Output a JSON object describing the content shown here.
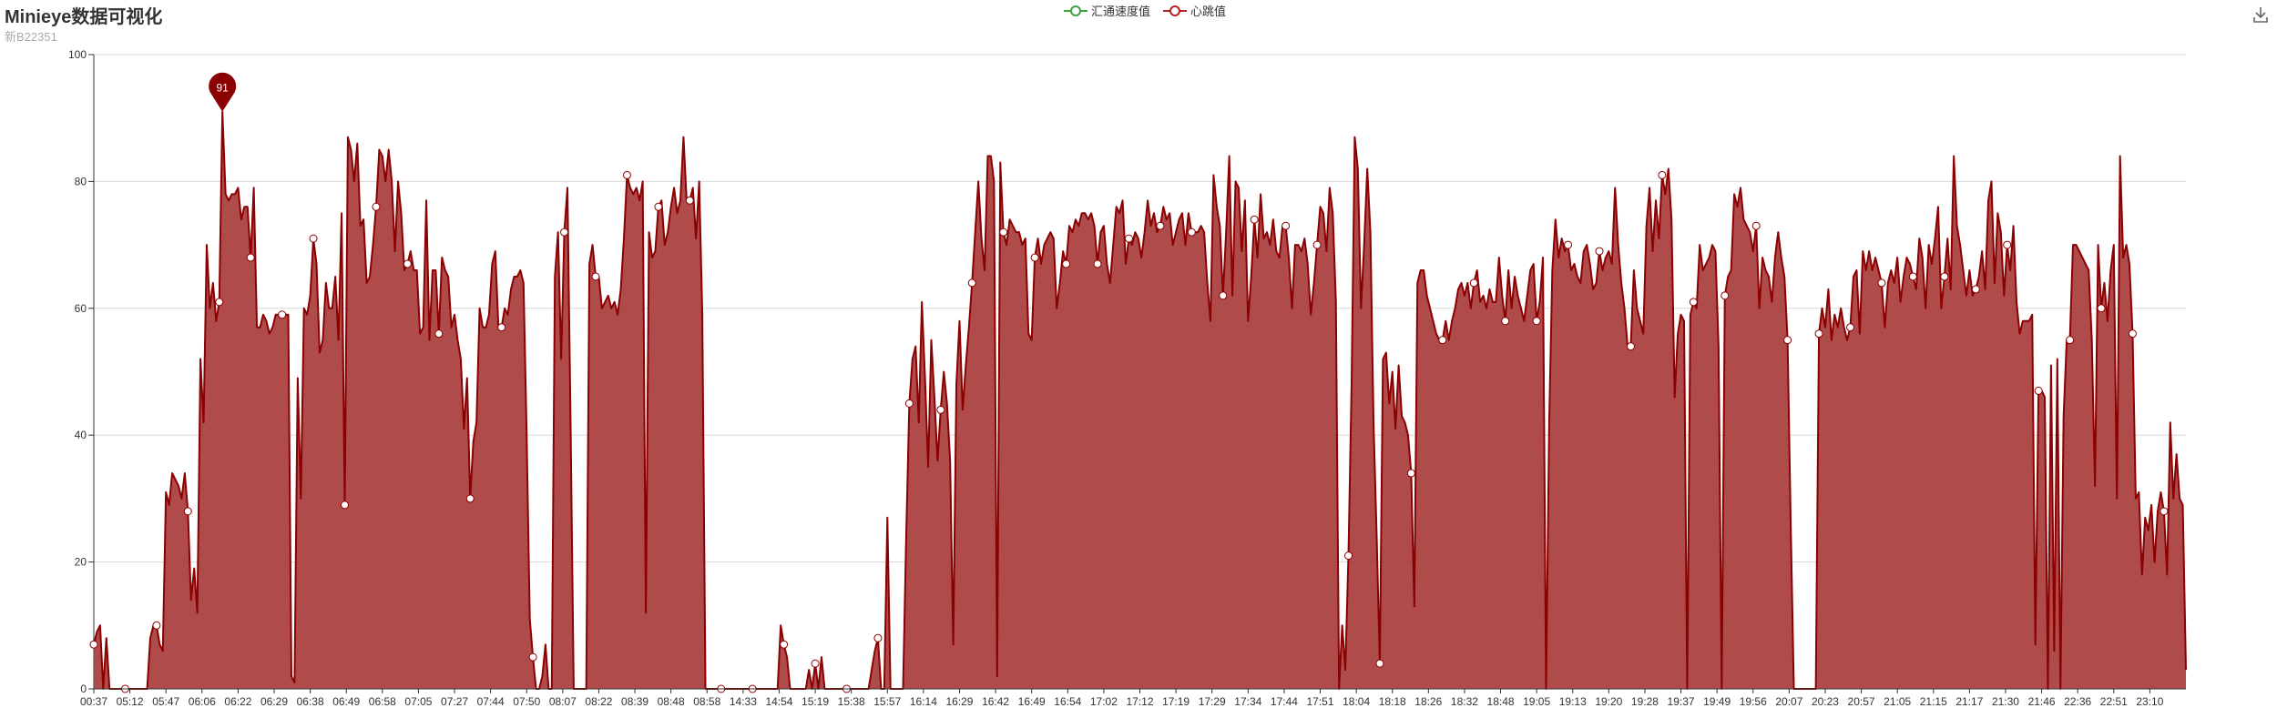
{
  "header": {
    "title": "Minieye数据可视化",
    "subtitle": "新B22351"
  },
  "legend": [
    {
      "name": "汇通速度值",
      "color": "#3aa33a"
    },
    {
      "name": "心跳值",
      "color": "#b22222"
    }
  ],
  "toolbox": {
    "download_icon": "download-icon"
  },
  "chart_data": {
    "type": "area",
    "title": "Minieye数据可视化",
    "subtitle": "新B22351",
    "ylim": [
      0,
      100
    ],
    "yticks": [
      0,
      20,
      40,
      60,
      80,
      100
    ],
    "grid": true,
    "legend_position": "top-center",
    "x_tick_labels": [
      "00:37",
      "05:12",
      "05:47",
      "06:06",
      "06:22",
      "06:29",
      "06:38",
      "06:49",
      "06:58",
      "07:05",
      "07:27",
      "07:44",
      "07:50",
      "08:07",
      "08:22",
      "08:39",
      "08:48",
      "08:58",
      "14:33",
      "14:54",
      "15:19",
      "15:38",
      "15:57",
      "16:14",
      "16:29",
      "16:42",
      "16:49",
      "16:54",
      "17:02",
      "17:12",
      "17:19",
      "17:29",
      "17:34",
      "17:44",
      "17:51",
      "18:04",
      "18:18",
      "18:26",
      "18:32",
      "18:48",
      "19:05",
      "19:13",
      "19:20",
      "19:28",
      "19:37",
      "19:49",
      "19:56",
      "20:07",
      "20:23",
      "20:57",
      "21:05",
      "21:15",
      "21:17",
      "21:30",
      "21:46",
      "22:36",
      "22:51",
      "23:10"
    ],
    "series": [
      {
        "name": "汇通速度值",
        "color": "#3aa33a",
        "values": []
      },
      {
        "name": "心跳值",
        "color": "#8b0000",
        "area_color": "#a83c3c",
        "values": [
          7,
          9,
          10,
          0,
          8,
          0,
          0,
          0,
          0,
          0,
          0,
          0,
          0,
          0,
          0,
          0,
          0,
          0,
          8,
          10,
          10,
          7,
          6,
          31,
          29,
          34,
          33,
          32,
          30,
          34,
          28,
          14,
          19,
          12,
          52,
          42,
          70,
          60,
          64,
          58,
          61,
          91,
          78,
          77,
          78,
          78,
          79,
          74,
          76,
          76,
          68,
          79,
          57,
          57,
          59,
          58,
          56,
          57,
          59,
          59,
          59,
          59,
          59,
          2,
          1,
          49,
          30,
          60,
          59,
          62,
          71,
          67,
          53,
          55,
          64,
          60,
          60,
          65,
          55,
          75,
          29,
          87,
          85,
          80,
          86,
          73,
          74,
          64,
          65,
          70,
          76,
          85,
          84,
          80,
          85,
          80,
          69,
          80,
          75,
          66,
          67,
          69,
          66,
          66,
          56,
          57,
          77,
          55,
          66,
          66,
          56,
          68,
          66,
          65,
          57,
          59,
          55,
          52,
          41,
          49,
          30,
          39,
          42,
          60,
          57,
          57,
          59,
          67,
          69,
          57,
          57,
          60,
          59,
          63,
          65,
          65,
          66,
          64,
          40,
          11,
          5,
          0,
          0,
          2,
          7,
          0,
          0,
          65,
          72,
          52,
          72,
          79,
          42,
          0,
          0,
          0,
          0,
          0,
          67,
          70,
          65,
          65,
          60,
          61,
          62,
          60,
          61,
          59,
          63,
          71,
          81,
          79,
          78,
          79,
          77,
          80,
          12,
          72,
          68,
          69,
          76,
          77,
          70,
          72,
          76,
          79,
          75,
          77,
          87,
          77,
          77,
          79,
          71,
          80,
          59,
          0,
          0,
          0,
          0,
          0,
          0,
          0,
          0,
          0,
          0,
          0,
          0,
          0,
          0,
          0,
          0,
          0,
          0,
          0,
          0,
          0,
          0,
          0,
          0,
          10,
          7,
          5,
          0,
          0,
          0,
          0,
          0,
          0,
          3,
          0,
          4,
          0,
          5,
          0,
          0,
          0,
          0,
          0,
          0,
          0,
          0,
          0,
          0,
          0,
          0,
          0,
          0,
          0,
          3,
          6,
          8,
          0,
          0,
          27,
          0,
          0,
          0,
          0,
          0,
          24,
          45,
          52,
          54,
          42,
          61,
          49,
          35,
          55,
          46,
          36,
          44,
          50,
          45,
          36,
          7,
          48,
          58,
          44,
          51,
          57,
          64,
          72,
          80,
          71,
          66,
          84,
          84,
          80,
          2,
          83,
          72,
          70,
          74,
          73,
          72,
          72,
          70,
          71,
          56,
          55,
          68,
          71,
          67,
          70,
          71,
          72,
          71,
          60,
          64,
          69,
          67,
          73,
          72,
          74,
          73,
          75,
          75,
          74,
          75,
          73,
          67,
          72,
          73,
          67,
          64,
          70,
          76,
          75,
          77,
          67,
          71,
          70,
          72,
          71,
          68,
          72,
          77,
          73,
          75,
          72,
          73,
          76,
          74,
          75,
          70,
          72,
          74,
          75,
          70,
          75,
          72,
          72,
          72,
          73,
          72,
          64,
          58,
          81,
          76,
          73,
          62,
          72,
          84,
          62,
          80,
          79,
          69,
          77,
          58,
          65,
          74,
          68,
          78,
          71,
          72,
          70,
          74,
          69,
          68,
          73,
          73,
          68,
          60,
          70,
          70,
          69,
          71,
          67,
          59,
          64,
          70,
          76,
          75,
          69,
          79,
          75,
          61,
          0,
          10,
          3,
          21,
          48,
          87,
          82,
          60,
          70,
          82,
          72,
          42,
          24,
          4,
          52,
          53,
          45,
          50,
          41,
          51,
          43,
          42,
          40,
          34,
          13,
          64,
          66,
          66,
          62,
          60,
          58,
          56,
          55,
          55,
          58,
          55,
          58,
          60,
          63,
          64,
          62,
          64,
          60,
          64,
          66,
          61,
          62,
          60,
          63,
          61,
          61,
          68,
          62,
          58,
          66,
          60,
          65,
          62,
          60,
          58,
          62,
          66,
          67,
          58,
          61,
          68,
          0,
          42,
          66,
          74,
          68,
          71,
          69,
          70,
          66,
          67,
          65,
          64,
          69,
          70,
          67,
          63,
          64,
          69,
          66,
          68,
          69,
          67,
          79,
          70,
          64,
          60,
          54,
          54,
          66,
          60,
          58,
          56,
          73,
          79,
          69,
          77,
          71,
          81,
          78,
          82,
          74,
          46,
          56,
          59,
          58,
          0,
          59,
          61,
          60,
          70,
          66,
          67,
          68,
          70,
          69,
          54,
          0,
          62,
          65,
          66,
          78,
          76,
          79,
          74,
          73,
          72,
          69,
          73,
          60,
          68,
          66,
          65,
          61,
          68,
          72,
          68,
          65,
          55,
          26,
          0,
          0,
          0,
          0,
          0,
          0,
          0,
          0,
          56,
          60,
          57,
          63,
          55,
          59,
          57,
          60,
          57,
          55,
          57,
          65,
          66,
          56,
          69,
          66,
          69,
          66,
          68,
          66,
          64,
          57,
          64,
          66,
          64,
          68,
          61,
          65,
          68,
          67,
          65,
          63,
          71,
          68,
          60,
          70,
          67,
          71,
          76,
          60,
          65,
          71,
          63,
          84,
          73,
          70,
          66,
          62,
          66,
          62,
          63,
          65,
          69,
          63,
          77,
          80,
          64,
          75,
          72,
          62,
          70,
          66,
          73,
          61,
          56,
          58,
          58,
          58,
          59,
          7,
          47,
          47,
          46,
          0,
          51,
          6,
          52,
          0,
          43,
          55,
          55,
          70,
          70,
          69,
          68,
          67,
          66,
          55,
          32,
          70,
          60,
          64,
          58,
          66,
          70,
          30,
          84,
          68,
          70,
          67,
          56,
          30,
          31,
          18,
          27,
          25,
          29,
          20,
          28,
          31,
          28,
          18,
          42,
          30,
          37,
          30,
          29,
          3
        ]
      }
    ],
    "markers": [
      {
        "series": "心跳值",
        "label": "91",
        "value": 91
      }
    ]
  }
}
